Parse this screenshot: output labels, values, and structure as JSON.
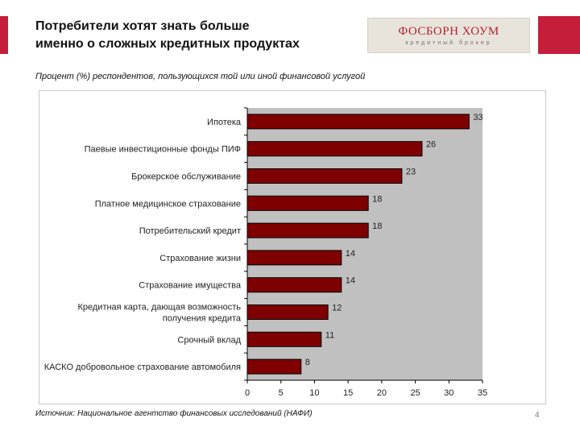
{
  "header": {
    "title_line1": "Потребители хотят знать больше",
    "title_line2": "именно о сложных кредитных продуктах"
  },
  "logo": {
    "brand": "ФОСБОРН ХОУМ",
    "tagline": "кредитный брокер"
  },
  "subtitle": "Процент (%) респондентов, пользующихся той или иной финансовой услугой",
  "footer": {
    "source": "Источник: Национальное агентство финансовых исследований (НАФИ)",
    "page_number": "4"
  },
  "colors": {
    "accent": "#c41e3a",
    "bar_fill": "#7f0000",
    "plot_background": "#c0c0c0"
  },
  "chart_data": {
    "type": "bar",
    "orientation": "horizontal",
    "categories": [
      "Ипотека",
      "Паевые инвестиционные фонды ПИФ",
      "Брокерское обслуживание",
      "Платное медицинское страхование",
      "Потребительский кредит",
      "Страхование жизни",
      "Страхование имущества",
      "Кредитная карта, дающая возможность получения кредита",
      "Срочный вклад",
      "КАСКО добровольное страхование автомобиля"
    ],
    "values": [
      33,
      26,
      23,
      18,
      18,
      14,
      14,
      12,
      11,
      8
    ],
    "data_labels": [
      "33",
      "26",
      "23",
      "18",
      "18",
      "14",
      "14",
      "12",
      "11",
      "8"
    ],
    "xlim": [
      0,
      35
    ],
    "xticks": [
      0,
      5,
      10,
      15,
      20,
      25,
      30,
      35
    ],
    "xtick_labels": [
      "0",
      "5",
      "10",
      "15",
      "20",
      "25",
      "30",
      "35"
    ],
    "title": "",
    "xlabel": "",
    "ylabel": "",
    "grid": false,
    "legend": "none"
  }
}
